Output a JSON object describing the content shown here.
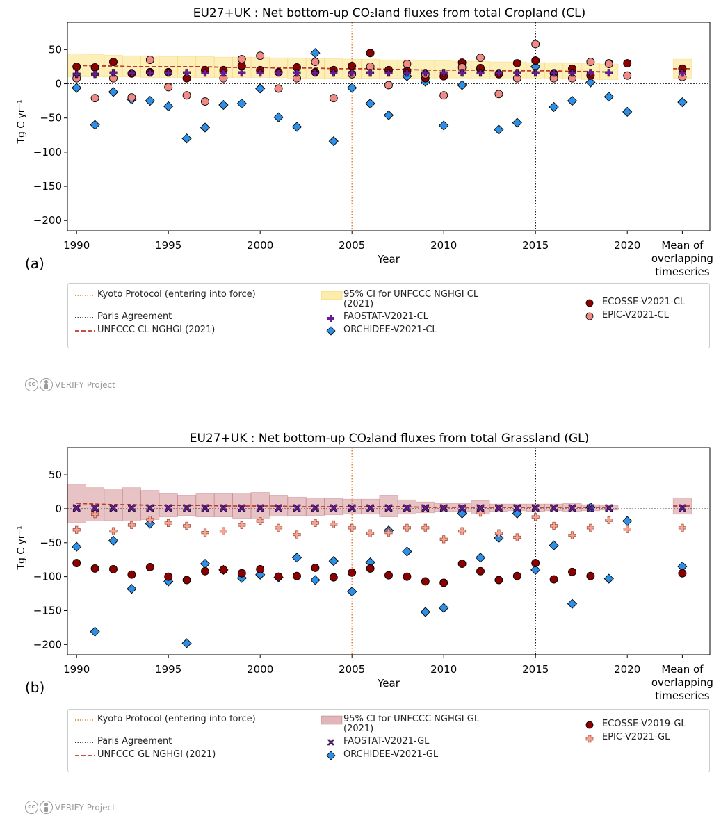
{
  "colors": {
    "kyoto": "#e07b28",
    "paris": "#000000",
    "nghgi": "#c0392b",
    "ci_cl": "#fbe58a",
    "ci_gl": "#c97a7e",
    "ecosse": "#8b0000",
    "epic_cl": "#ef8a85",
    "epic_gl": "#f4a490",
    "faostat": "#6a1b9a",
    "orchidee": "#2e8fe6"
  },
  "credit": {
    "text": "VERIFY Project",
    "icons": [
      "cc-icon",
      "by-icon"
    ]
  },
  "chart_data": [
    {
      "type": "scatter",
      "title": "EU27+UK : Net bottom-up CO₂land fluxes from total Cropland (CL)",
      "xlabel": "Year",
      "ylabel": "Tg C yr⁻¹",
      "panel_label": "(a)",
      "xlim": [
        1989.5,
        2024.5
      ],
      "ylim": [
        -215,
        90
      ],
      "yticks": [
        50,
        0,
        -50,
        -100,
        -150,
        -200
      ],
      "ytick_labels": [
        "50",
        "0",
        "−50",
        "−100",
        "−150",
        "−200"
      ],
      "xticks": [
        1990,
        1995,
        2000,
        2005,
        2010,
        2015,
        2020
      ],
      "xtick_labels": [
        "1990",
        "1995",
        "2000",
        "2005",
        "2010",
        "2015",
        "2020"
      ],
      "mean_label": [
        "Mean of",
        "overlapping",
        "timeseries"
      ],
      "mean_x": 2023,
      "kyoto_x": 2005,
      "paris_x": 2015,
      "years": [
        1990,
        1991,
        1992,
        1993,
        1994,
        1995,
        1996,
        1997,
        1998,
        1999,
        2000,
        2001,
        2002,
        2003,
        2004,
        2005,
        2006,
        2007,
        2008,
        2009,
        2010,
        2011,
        2012,
        2013,
        2014,
        2015,
        2016,
        2017,
        2018,
        2019,
        2020
      ],
      "nghgi": {
        "name": "UNFCCC CL NGHGI (2021)",
        "values": [
          27,
          26,
          26,
          25,
          25,
          25,
          25,
          25,
          24,
          24,
          24,
          23,
          23,
          23,
          22,
          22,
          22,
          21,
          21,
          20,
          20,
          20,
          20,
          19,
          19,
          19,
          19,
          18,
          18,
          17
        ],
        "mean": 22
      },
      "ci": {
        "name": "95% CI for UNFCCC NGHGI CL (2021)",
        "low": [
          10,
          10,
          10,
          10,
          9,
          9,
          9,
          9,
          9,
          9,
          9,
          9,
          8,
          8,
          8,
          8,
          8,
          8,
          8,
          7,
          7,
          7,
          7,
          7,
          7,
          7,
          7,
          7,
          6,
          6
        ],
        "high": [
          44,
          43,
          42,
          41,
          41,
          40,
          40,
          40,
          39,
          39,
          39,
          38,
          38,
          37,
          37,
          36,
          36,
          35,
          35,
          34,
          34,
          33,
          33,
          32,
          32,
          31,
          31,
          30,
          30,
          29
        ],
        "mean_low": 8,
        "mean_high": 36
      },
      "series": [
        {
          "name": "ECOSSE-V2021-CL",
          "marker": "circle",
          "color_key": "ecosse",
          "values": [
            25,
            24,
            32,
            15,
            17,
            17,
            8,
            20,
            20,
            26,
            20,
            17,
            24,
            17,
            20,
            26,
            45,
            20,
            19,
            8,
            11,
            31,
            23,
            14,
            30,
            34,
            15,
            22,
            12,
            30,
            30
          ],
          "mean": 22
        },
        {
          "name": "EPIC-V2021-CL",
          "marker": "circle",
          "color_key": "epic_cl",
          "values": [
            8,
            -21,
            8,
            -20,
            35,
            -5,
            -17,
            -26,
            8,
            36,
            41,
            -7,
            8,
            32,
            -21,
            14,
            25,
            -2,
            29,
            14,
            -17,
            24,
            38,
            -15,
            8,
            58,
            8,
            8,
            32,
            29,
            12
          ],
          "mean": 10
        },
        {
          "name": "FAOSTAT-V2021-CL",
          "marker": "plus",
          "color_key": "faostat",
          "values": [
            14,
            14,
            16,
            16,
            16,
            16,
            16,
            16,
            16,
            16,
            16,
            16,
            16,
            16,
            16,
            16,
            16,
            16,
            16,
            16,
            16,
            16,
            16,
            16,
            16,
            16,
            16,
            16,
            16,
            16
          ],
          "mean": 16
        },
        {
          "name": "ORCHIDEE-V2021-CL",
          "marker": "diamond",
          "color_key": "orchidee",
          "values": [
            -6,
            -60,
            -12,
            -23,
            -25,
            -33,
            -80,
            -64,
            -31,
            -29,
            -7,
            -49,
            -63,
            45,
            -84,
            -6,
            -29,
            -46,
            11,
            3,
            -61,
            -2,
            21,
            -67,
            -57,
            25,
            -34,
            -25,
            2,
            -19,
            -41
          ],
          "mean": -27
        }
      ],
      "legend": {
        "kyoto": "Kyoto Protocol (entering into force)",
        "paris": "Paris Agreement",
        "nghgi": "UNFCCC CL NGHGI (2021)",
        "ci": "95% CI for UNFCCC NGHGI CL (2021)",
        "faostat": "FAOSTAT-V2021-CL",
        "orchidee": "ORCHIDEE-V2021-CL",
        "ecosse": "ECOSSE-V2021-CL",
        "epic": "EPIC-V2021-CL"
      }
    },
    {
      "type": "scatter",
      "title": "EU27+UK : Net bottom-up CO₂land fluxes from total Grassland (GL)",
      "xlabel": "Year",
      "ylabel": "Tg C yr⁻¹",
      "panel_label": "(b)",
      "xlim": [
        1989.5,
        2024.5
      ],
      "ylim": [
        -215,
        90
      ],
      "yticks": [
        50,
        0,
        -50,
        -100,
        -150,
        -200
      ],
      "ytick_labels": [
        "50",
        "0",
        "−50",
        "−100",
        "−150",
        "−200"
      ],
      "xticks": [
        1990,
        1995,
        2000,
        2005,
        2010,
        2015,
        2020
      ],
      "xtick_labels": [
        "1990",
        "1995",
        "2000",
        "2005",
        "2010",
        "2015",
        "2020"
      ],
      "mean_label": [
        "Mean of",
        "overlapping",
        "timeseries"
      ],
      "mean_x": 2023,
      "kyoto_x": 2005,
      "paris_x": 2015,
      "years": [
        1990,
        1991,
        1992,
        1993,
        1994,
        1995,
        1996,
        1997,
        1998,
        1999,
        2000,
        2001,
        2002,
        2003,
        2004,
        2005,
        2006,
        2007,
        2008,
        2009,
        2010,
        2011,
        2012,
        2013,
        2014,
        2015,
        2016,
        2017,
        2018,
        2019,
        2020
      ],
      "nghgi": {
        "name": "UNFCCC GL NGHGI (2021)",
        "values": [
          8,
          7,
          6,
          6,
          5,
          5,
          5,
          5,
          4,
          4,
          4,
          4,
          3,
          3,
          3,
          3,
          3,
          3,
          3,
          2,
          2,
          2,
          2,
          2,
          2,
          2,
          2,
          2,
          2,
          2
        ],
        "mean": 4
      },
      "ci": {
        "name": "95% CI for UNFCCC NGHGI GL (2021)",
        "low": [
          -20,
          -18,
          -17,
          -18,
          -16,
          -12,
          -10,
          -12,
          -12,
          -14,
          -15,
          -11,
          -10,
          -10,
          -9,
          -8,
          -8,
          -12,
          -8,
          -6,
          -4,
          -4,
          -8,
          -4,
          -3,
          -4,
          -3,
          -4,
          -3,
          -2
        ],
        "high": [
          36,
          31,
          29,
          31,
          27,
          22,
          20,
          22,
          22,
          23,
          24,
          20,
          17,
          16,
          15,
          14,
          14,
          20,
          13,
          10,
          8,
          8,
          12,
          7,
          7,
          7,
          7,
          8,
          6,
          5
        ],
        "mean_low": -8,
        "mean_high": 16
      },
      "series": [
        {
          "name": "ECOSSE-V2019-GL",
          "marker": "circle",
          "color_key": "ecosse",
          "values": [
            -80,
            -88,
            -89,
            -97,
            -86,
            -100,
            -105,
            -92,
            -90,
            -95,
            -89,
            -100,
            -99,
            -87,
            -101,
            -94,
            -88,
            -98,
            -100,
            -107,
            -109,
            -81,
            -92,
            -105,
            -99,
            -80,
            -104,
            -93,
            -99
          ],
          "mean": -95
        },
        {
          "name": "EPIC-V2021-GL",
          "marker": "plus",
          "color_key": "epic_gl",
          "values": [
            -31,
            -8,
            -33,
            -24,
            -16,
            -21,
            -25,
            -35,
            -33,
            -24,
            -18,
            -28,
            -38,
            -21,
            -23,
            -28,
            -36,
            -35,
            -28,
            -28,
            -45,
            -33,
            -6,
            -36,
            -42,
            -12,
            -25,
            -39,
            -28,
            -17,
            -30
          ],
          "mean": -28
        },
        {
          "name": "FAOSTAT-V2021-GL",
          "marker": "x",
          "color_key": "faostat",
          "values": [
            1,
            1,
            1,
            1,
            1,
            1,
            1,
            1,
            1,
            1,
            1,
            1,
            1,
            1,
            1,
            1,
            1,
            1,
            1,
            1,
            1,
            1,
            1,
            1,
            1,
            1,
            1,
            1,
            1,
            1
          ],
          "mean": 1
        },
        {
          "name": "ORCHIDEE-V2021-GL",
          "marker": "diamond",
          "color_key": "orchidee",
          "values": [
            -56,
            -181,
            -47,
            -118,
            -22,
            -107,
            -198,
            -81,
            -90,
            -102,
            -97,
            -101,
            -72,
            -105,
            -77,
            -122,
            -79,
            -32,
            -63,
            -152,
            -146,
            -7,
            -72,
            -43,
            -7,
            -90,
            -54,
            -140,
            2,
            -103,
            -18
          ],
          "mean": -85
        }
      ],
      "legend": {
        "kyoto": "Kyoto Protocol (entering into force)",
        "paris": "Paris Agreement",
        "nghgi": "UNFCCC GL NGHGI (2021)",
        "ci": "95% CI for UNFCCC NGHGI GL (2021)",
        "faostat": "FAOSTAT-V2021-GL",
        "orchidee": "ORCHIDEE-V2021-GL",
        "ecosse": "ECOSSE-V2019-GL",
        "epic": "EPIC-V2021-GL"
      }
    }
  ]
}
